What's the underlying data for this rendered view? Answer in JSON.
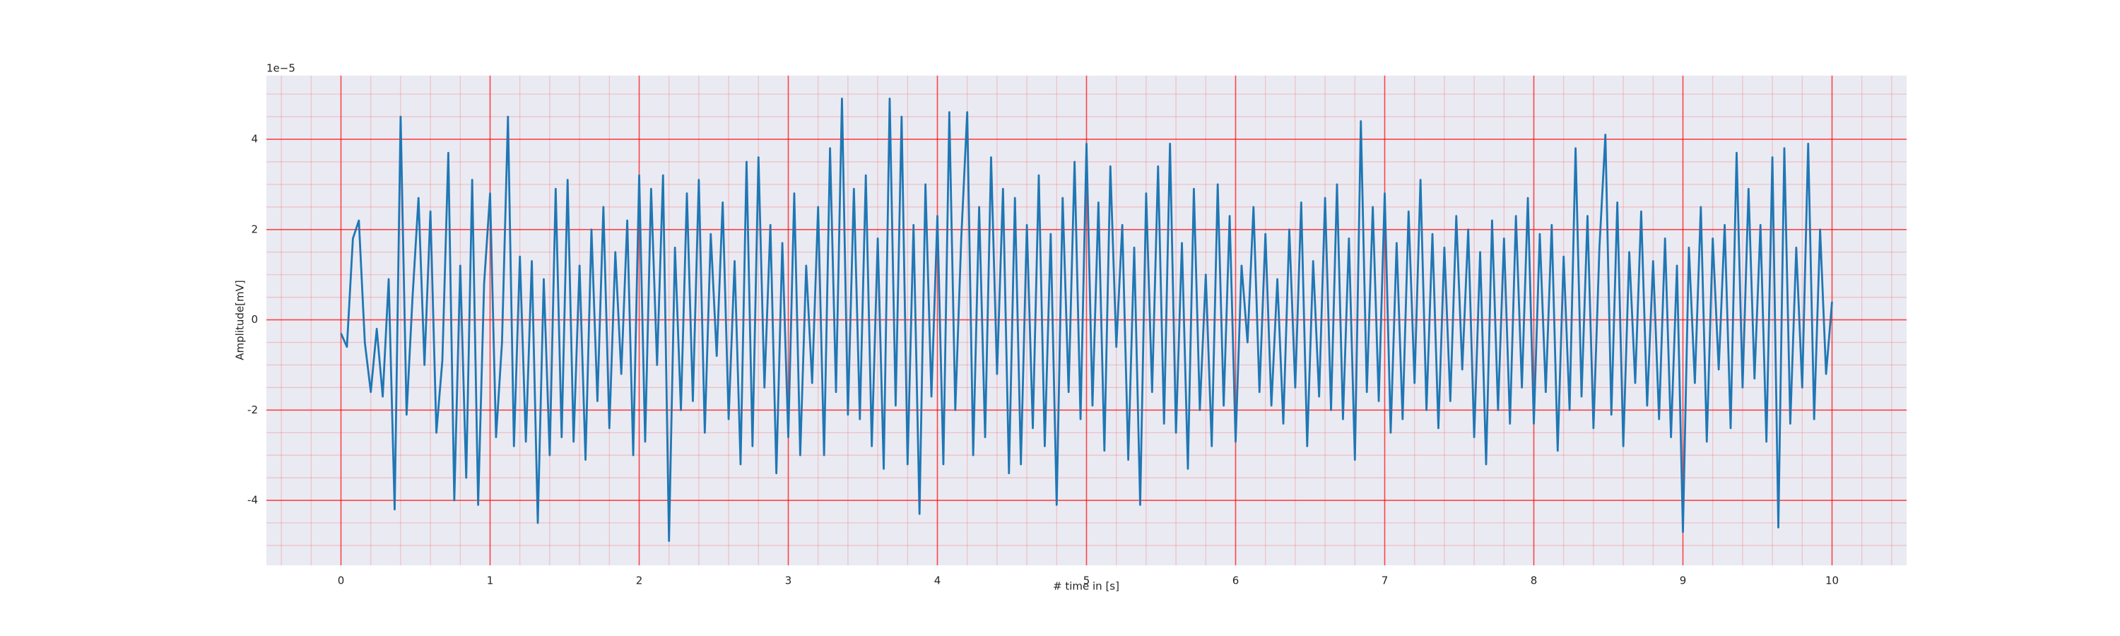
{
  "chart_data": {
    "type": "line",
    "x_label": "# time in [s]",
    "y_label": "Amplitude[mV]",
    "y_offset_label": "1e−5",
    "color": "#1f77b4",
    "grid": true,
    "minor_grid": true,
    "xlim": [
      -0.5,
      10.5
    ],
    "ylim": [
      -5.44,
      5.41
    ],
    "xticks": [
      0,
      1,
      2,
      3,
      4,
      5,
      6,
      7,
      8,
      9,
      10
    ],
    "yticks": [
      -4,
      -2,
      0,
      2,
      4
    ],
    "xminorticks": [
      -0.4,
      -0.2,
      0.2,
      0.4,
      0.6,
      0.8,
      1.2,
      1.4,
      1.6,
      1.8,
      2.2,
      2.4,
      2.6,
      2.8,
      3.2,
      3.4,
      3.6,
      3.8,
      4.2,
      4.4,
      4.6,
      4.8,
      5.2,
      5.4,
      5.6,
      5.8,
      6.2,
      6.4,
      6.6,
      6.8,
      7.2,
      7.4,
      7.6,
      7.8,
      8.2,
      8.4,
      8.6,
      8.8,
      9.2,
      9.4,
      9.6,
      9.8,
      10.2,
      10.4
    ],
    "yminorticks": [
      -5,
      -4.5,
      -3.5,
      -3,
      -2.5,
      -1.5,
      -1,
      -0.5,
      0.5,
      1,
      1.5,
      2.5,
      3,
      3.5,
      4.5,
      5
    ],
    "x": [
      0,
      0.04,
      0.08,
      0.12,
      0.16,
      0.2,
      0.24,
      0.28,
      0.32,
      0.36,
      0.4,
      0.44,
      0.48,
      0.52,
      0.56,
      0.6,
      0.64,
      0.68,
      0.72,
      0.76,
      0.8,
      0.84,
      0.88,
      0.92,
      0.96,
      1,
      1.04,
      1.08,
      1.12,
      1.16,
      1.2,
      1.24,
      1.28,
      1.32,
      1.36,
      1.4,
      1.44,
      1.48,
      1.52,
      1.56,
      1.6,
      1.64,
      1.68,
      1.72,
      1.76,
      1.8,
      1.84,
      1.88,
      1.92,
      1.96,
      2,
      2.04,
      2.08,
      2.12,
      2.16,
      2.2,
      2.24,
      2.28,
      2.32,
      2.36,
      2.4,
      2.44,
      2.48,
      2.52,
      2.56,
      2.6,
      2.64,
      2.68,
      2.72,
      2.76,
      2.8,
      2.84,
      2.88,
      2.92,
      2.96,
      3,
      3.04,
      3.08,
      3.12,
      3.16,
      3.2,
      3.24,
      3.28,
      3.32,
      3.36,
      3.4,
      3.44,
      3.48,
      3.52,
      3.56,
      3.6,
      3.64,
      3.68,
      3.72,
      3.76,
      3.8,
      3.84,
      3.88,
      3.92,
      3.96,
      4,
      4.04,
      4.08,
      4.12,
      4.16,
      4.2,
      4.24,
      4.28,
      4.32,
      4.36,
      4.4,
      4.44,
      4.48,
      4.52,
      4.56,
      4.6,
      4.64,
      4.68,
      4.72,
      4.76,
      4.8,
      4.84,
      4.88,
      4.92,
      4.96,
      5,
      5.04,
      5.08,
      5.12,
      5.16,
      5.2,
      5.24,
      5.28,
      5.32,
      5.36,
      5.4,
      5.44,
      5.48,
      5.52,
      5.56,
      5.6,
      5.64,
      5.68,
      5.72,
      5.76,
      5.8,
      5.84,
      5.88,
      5.92,
      5.96,
      6,
      6.04,
      6.08,
      6.12,
      6.16,
      6.2,
      6.24,
      6.28,
      6.32,
      6.36,
      6.4,
      6.44,
      6.48,
      6.52,
      6.56,
      6.6,
      6.64,
      6.68,
      6.72,
      6.76,
      6.8,
      6.84,
      6.88,
      6.92,
      6.96,
      7,
      7.04,
      7.08,
      7.12,
      7.16,
      7.2,
      7.24,
      7.28,
      7.32,
      7.36,
      7.4,
      7.44,
      7.48,
      7.52,
      7.56,
      7.6,
      7.64,
      7.68,
      7.72,
      7.76,
      7.8,
      7.84,
      7.88,
      7.92,
      7.96,
      8,
      8.04,
      8.08,
      8.12,
      8.16,
      8.2,
      8.24,
      8.28,
      8.32,
      8.36,
      8.4,
      8.44,
      8.48,
      8.52,
      8.56,
      8.6,
      8.64,
      8.68,
      8.72,
      8.76,
      8.8,
      8.84,
      8.88,
      8.92,
      8.96,
      9,
      9.04,
      9.08,
      9.12,
      9.16,
      9.2,
      9.24,
      9.28,
      9.32,
      9.36,
      9.4,
      9.44,
      9.48,
      9.52,
      9.56,
      9.6,
      9.64,
      9.68,
      9.72,
      9.76,
      9.8,
      9.84,
      9.88,
      9.92,
      9.96,
      10
    ],
    "values": [
      -0.3,
      -0.6,
      1.8,
      2.2,
      -0.5,
      -1.6,
      -0.2,
      -1.7,
      0.9,
      -4.2,
      4.5,
      -2.1,
      0.5,
      2.7,
      -1.0,
      2.4,
      -2.5,
      -0.9,
      3.7,
      -4.0,
      1.2,
      -3.5,
      3.1,
      -4.1,
      0.8,
      2.8,
      -2.6,
      -0.5,
      4.5,
      -2.8,
      1.4,
      -2.7,
      1.3,
      -4.5,
      0.9,
      -3.0,
      2.9,
      -2.6,
      3.1,
      -2.7,
      1.2,
      -3.1,
      2.0,
      -1.8,
      2.5,
      -2.4,
      1.5,
      -1.2,
      2.2,
      -3.0,
      3.2,
      -2.7,
      2.9,
      -1.0,
      3.2,
      -4.9,
      1.6,
      -2.0,
      2.8,
      -1.8,
      3.1,
      -2.5,
      1.9,
      -0.8,
      2.6,
      -2.2,
      1.3,
      -3.2,
      3.5,
      -2.8,
      3.6,
      -1.5,
      2.1,
      -3.4,
      1.7,
      -2.6,
      2.8,
      -3.0,
      1.2,
      -1.4,
      2.5,
      -3.0,
      3.8,
      -1.6,
      4.9,
      -2.1,
      2.9,
      -2.2,
      3.2,
      -2.8,
      1.8,
      -3.3,
      4.9,
      -1.9,
      4.5,
      -3.2,
      2.1,
      -4.3,
      3.0,
      -1.7,
      2.3,
      -3.2,
      4.6,
      -2.0,
      1.8,
      4.6,
      -3.0,
      2.5,
      -2.6,
      3.6,
      -1.2,
      2.9,
      -3.4,
      2.7,
      -3.2,
      2.1,
      -2.4,
      3.2,
      -2.8,
      1.9,
      -4.1,
      2.7,
      -1.6,
      3.5,
      -2.2,
      3.9,
      -1.9,
      2.6,
      -2.9,
      3.4,
      -0.6,
      2.1,
      -3.1,
      1.6,
      -4.1,
      2.8,
      -1.6,
      3.4,
      -2.3,
      3.9,
      -2.5,
      1.7,
      -3.3,
      2.9,
      -2.0,
      1.0,
      -2.8,
      3.0,
      -1.9,
      2.3,
      -2.7,
      1.2,
      -0.5,
      2.5,
      -1.6,
      1.9,
      -1.9,
      0.9,
      -2.3,
      2.0,
      -1.5,
      2.6,
      -2.8,
      1.3,
      -1.7,
      2.7,
      -2.0,
      3.0,
      -2.2,
      1.8,
      -3.1,
      4.4,
      -1.6,
      2.5,
      -1.8,
      2.8,
      -2.5,
      1.7,
      -2.2,
      2.4,
      -1.4,
      3.1,
      -2.0,
      1.9,
      -2.4,
      1.6,
      -1.8,
      2.3,
      -1.1,
      2.0,
      -2.6,
      1.5,
      -3.2,
      2.2,
      -2.0,
      1.8,
      -2.3,
      2.3,
      -1.5,
      2.7,
      -2.3,
      1.9,
      -1.6,
      2.1,
      -2.9,
      1.4,
      -2.0,
      3.8,
      -1.7,
      2.3,
      -2.4,
      1.6,
      4.1,
      -2.1,
      2.6,
      -2.8,
      1.5,
      -1.4,
      2.4,
      -1.9,
      1.3,
      -2.2,
      1.8,
      -2.6,
      1.2,
      -4.7,
      1.6,
      -1.4,
      2.5,
      -2.7,
      1.8,
      -1.1,
      2.1,
      -2.4,
      3.7,
      -1.5,
      2.9,
      -1.3,
      2.1,
      -2.7,
      3.6,
      -4.6,
      3.8,
      -2.3,
      1.6,
      -1.5,
      3.9,
      -2.2,
      2.0,
      -1.2,
      0.4
    ]
  }
}
